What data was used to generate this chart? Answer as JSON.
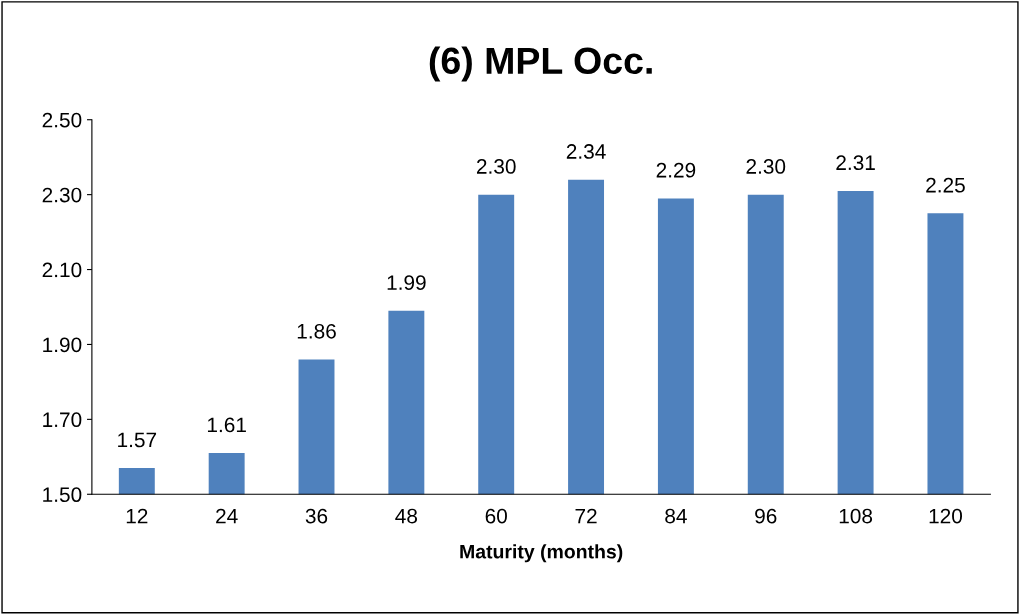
{
  "chart_data": {
    "type": "bar",
    "title": "(6) MPL Occ.",
    "xlabel": "Maturity (months)",
    "categories": [
      "12",
      "24",
      "36",
      "48",
      "60",
      "72",
      "84",
      "96",
      "108",
      "120"
    ],
    "values": [
      1.57,
      1.61,
      1.86,
      1.99,
      2.3,
      2.34,
      2.29,
      2.3,
      2.31,
      2.25
    ],
    "color": "#4f81bd",
    "ylim": [
      1.5,
      2.5
    ],
    "yticks": [
      {
        "value": 1.5,
        "label": "1.50"
      },
      {
        "value": 1.7,
        "label": "1.70"
      },
      {
        "value": 1.9,
        "label": "1.90"
      },
      {
        "value": 2.1,
        "label": "2.10"
      },
      {
        "value": 2.3,
        "label": "2.30"
      },
      {
        "value": 2.5,
        "label": "2.50"
      }
    ],
    "value_labels": [
      "1.57",
      "1.61",
      "1.86",
      "1.99",
      "2.30",
      "2.34",
      "2.29",
      "2.30",
      "2.31",
      "2.25"
    ],
    "grid": false,
    "legend": false
  }
}
